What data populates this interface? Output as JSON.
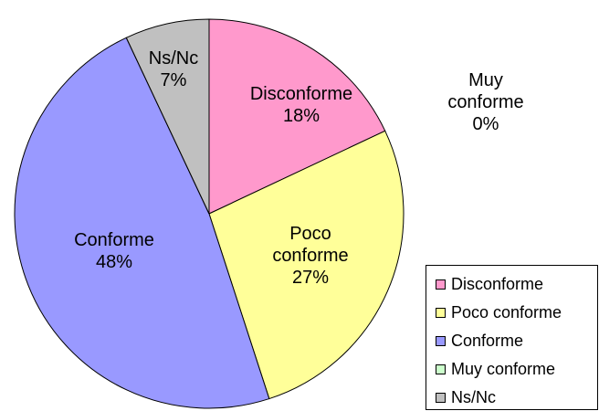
{
  "chart_data": {
    "type": "pie",
    "categories": [
      "Disconforme",
      "Poco conforme",
      "Conforme",
      "Muy conforme",
      "Ns/Nc"
    ],
    "values": [
      18,
      27,
      48,
      0,
      7
    ],
    "value_labels": [
      "18%",
      "27%",
      "48%",
      "0%",
      "7%"
    ],
    "colors": [
      "#ff99cc",
      "#ffff99",
      "#9999ff",
      "#ccffcc",
      "#c0c0c0"
    ],
    "legend": "bottom-right"
  }
}
